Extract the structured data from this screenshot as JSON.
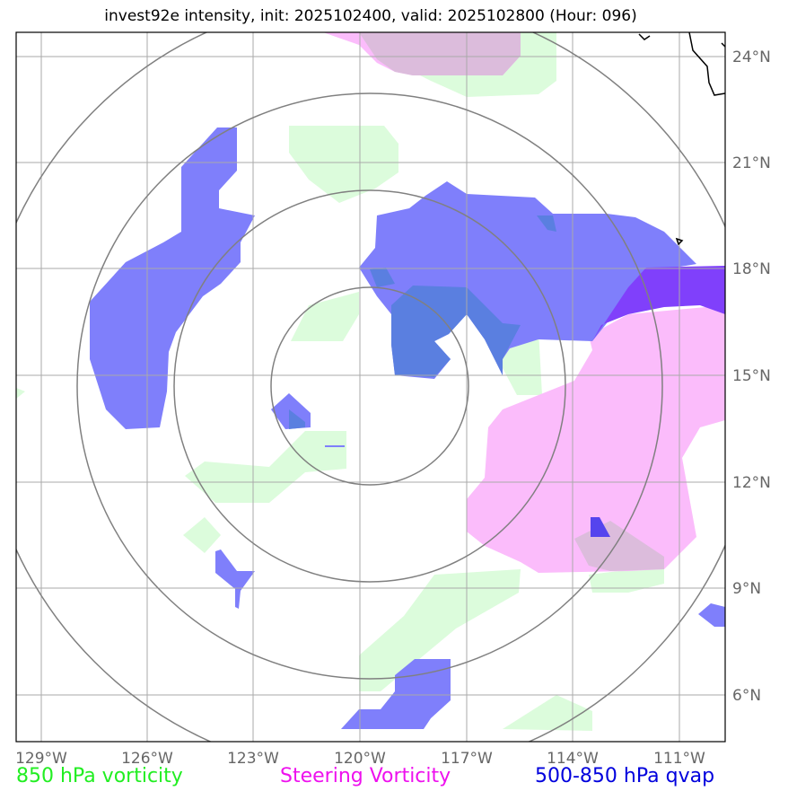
{
  "title": "invest92e intensity, init: 2025102400, valid: 2025102800 (Hour: 096)",
  "map": {
    "lon_ticks": [
      "129°W",
      "126°W",
      "123°W",
      "120°W",
      "117°W",
      "114°W",
      "111°W"
    ],
    "lat_ticks": [
      "24°N",
      "21°N",
      "18°N",
      "15°N",
      "12°N",
      "9°N",
      "6°N"
    ],
    "lon_range": [
      -129.7,
      -109.7
    ],
    "lat_range": [
      4.8,
      24.9
    ],
    "storm_center": {
      "lon": -119.8,
      "lat": 14.8
    },
    "ring_radii_deg": [
      2.8,
      5.5,
      8.3,
      11.0
    ]
  },
  "legend": [
    {
      "label": "850 hPa vorticity",
      "color": "#22ee22"
    },
    {
      "label": "Steering Vorticity",
      "color": "#ee11ee"
    },
    {
      "label": "500-850 hPa qvap",
      "color": "#0000dd"
    }
  ],
  "colors": {
    "vorticity_fill": "#dcfcdc",
    "steering_fill": "#fbbcfb",
    "qvap_fill": "#7f7ffb",
    "overlap_fill": "#8040fb",
    "grid": "#aaaaaa",
    "rings": "#808080"
  }
}
